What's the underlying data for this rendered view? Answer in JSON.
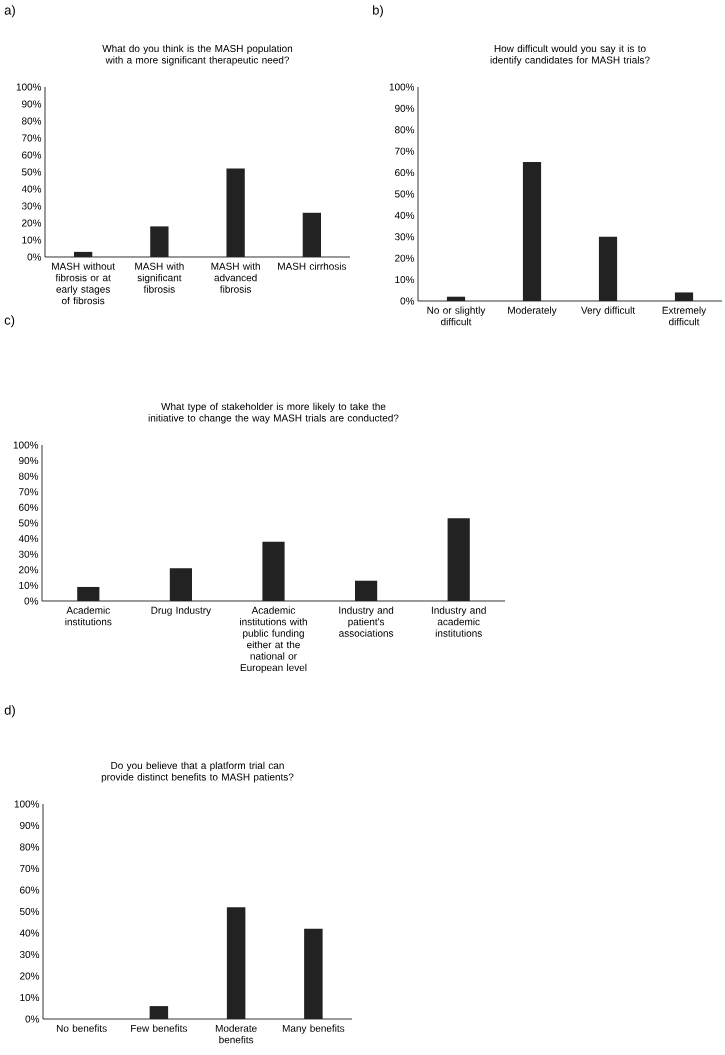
{
  "chart_data": [
    {
      "type": "bar",
      "annotations": [
        "a)"
      ],
      "title": "What do you think is the MASH population with a more significant therapeutic need?",
      "categories": [
        "MASH without fibrosis or at early stages of fibrosis",
        "MASH with significant fibrosis",
        "MASH with advanced fibrosis",
        "MASH cirrhosis"
      ],
      "values": [
        3,
        18,
        52,
        26
      ],
      "color": "#222222",
      "ylim": [
        0,
        100
      ],
      "yticks": [
        {
          "value": 0,
          "label": "0%"
        },
        {
          "value": 10,
          "label": "10%"
        },
        {
          "value": 20,
          "label": "20%"
        },
        {
          "value": 30,
          "label": "30%"
        },
        {
          "value": 40,
          "label": "40%"
        },
        {
          "value": 50,
          "label": "50%"
        },
        {
          "value": 60,
          "label": "60%"
        },
        {
          "value": 70,
          "label": "70%"
        },
        {
          "value": 80,
          "label": "80%"
        },
        {
          "value": 90,
          "label": "90%"
        },
        {
          "value": 100,
          "label": "100%"
        }
      ]
    },
    {
      "type": "bar",
      "annotations": [
        "b)"
      ],
      "title": "How difficult would you say it is to identify candidates for MASH trials?",
      "categories": [
        "No or slightly difficult",
        "Moderately",
        "Very difficult",
        "Extremely difficult"
      ],
      "values": [
        2,
        65,
        30,
        4
      ],
      "color": "#222222",
      "ylim": [
        0,
        100
      ],
      "yticks": [
        {
          "value": 0,
          "label": "0%"
        },
        {
          "value": 10,
          "label": "10%"
        },
        {
          "value": 20,
          "label": "20%"
        },
        {
          "value": 30,
          "label": "30%"
        },
        {
          "value": 40,
          "label": "40%"
        },
        {
          "value": 50,
          "label": "50%"
        },
        {
          "value": 60,
          "label": "60%"
        },
        {
          "value": 70,
          "label": "70%"
        },
        {
          "value": 80,
          "label": "80%"
        },
        {
          "value": 90,
          "label": "90%"
        },
        {
          "value": 100,
          "label": "100%"
        }
      ]
    },
    {
      "type": "bar",
      "annotations": [
        "c)"
      ],
      "title": "What type of stakeholder is more likely to take the initiative to change the way MASH trials are conducted?",
      "categories": [
        "Academic institutions",
        "Drug Industry",
        "Academic institutions with public funding either at the national or European level",
        "Industry and patient's associations",
        "Industry and academic institutions"
      ],
      "values": [
        9,
        21,
        38,
        13,
        53
      ],
      "color": "#222222",
      "ylim": [
        0,
        100
      ],
      "yticks": [
        {
          "value": 0,
          "label": "0%"
        },
        {
          "value": 10,
          "label": "10%"
        },
        {
          "value": 20,
          "label": "20%"
        },
        {
          "value": 30,
          "label": "30%"
        },
        {
          "value": 40,
          "label": "40%"
        },
        {
          "value": 50,
          "label": "50%"
        },
        {
          "value": 60,
          "label": "60%"
        },
        {
          "value": 70,
          "label": "70%"
        },
        {
          "value": 80,
          "label": "80%"
        },
        {
          "value": 90,
          "label": "90%"
        },
        {
          "value": 100,
          "label": "100%"
        }
      ]
    },
    {
      "type": "bar",
      "annotations": [
        "d)"
      ],
      "title": "Do you believe that a platform trial can provide distinct benefits to MASH patients?",
      "categories": [
        "No benefits",
        "Few benefits",
        "Moderate benefits",
        "Many benefits"
      ],
      "values": [
        0,
        6,
        52,
        42
      ],
      "color": "#222222",
      "ylim": [
        0,
        100
      ],
      "yticks": [
        {
          "value": 0,
          "label": "0%"
        },
        {
          "value": 10,
          "label": "10%"
        },
        {
          "value": 20,
          "label": "20%"
        },
        {
          "value": 30,
          "label": "30%"
        },
        {
          "value": 40,
          "label": "40%"
        },
        {
          "value": 50,
          "label": "50%"
        },
        {
          "value": 60,
          "label": "60%"
        },
        {
          "value": 70,
          "label": "70%"
        },
        {
          "value": 80,
          "label": "80%"
        },
        {
          "value": 90,
          "label": "90%"
        },
        {
          "value": 100,
          "label": "100%"
        }
      ]
    }
  ]
}
